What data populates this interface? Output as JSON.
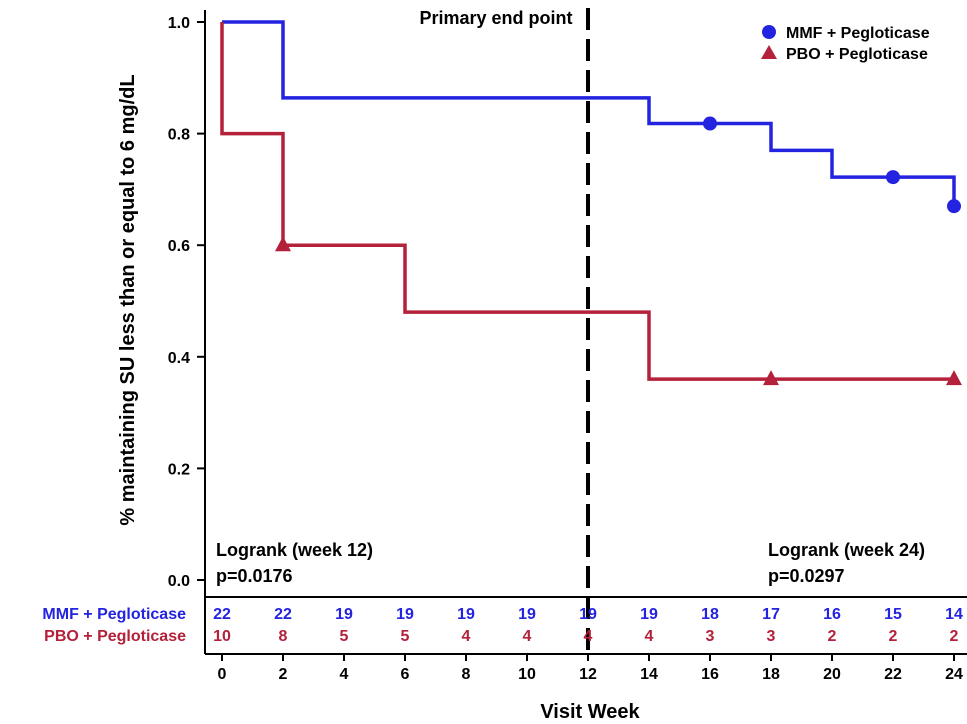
{
  "chart_data": {
    "type": "line",
    "subtype": "kaplan-meier-step",
    "xlabel": "Visit Week",
    "ylabel": "% maintaining SU less than or equal to 6 mg/dL",
    "xlim": [
      0,
      24
    ],
    "ylim": [
      0,
      1
    ],
    "x_ticks": [
      "0",
      "2",
      "4",
      "6",
      "8",
      "10",
      "12",
      "14",
      "16",
      "18",
      "20",
      "22",
      "24"
    ],
    "y_ticks": [
      "0.0",
      "0.2",
      "0.4",
      "0.6",
      "0.8",
      "1.0"
    ],
    "grid": false,
    "legend_position": "top-right",
    "reference_line": {
      "x": 12,
      "label": "Primary end point",
      "style": "dashed"
    },
    "series": [
      {
        "name": "MMF + Pegloticase",
        "color": "#2323e0",
        "marker": "circle",
        "steps": [
          {
            "x": 0,
            "y": 1.0
          },
          {
            "x": 2,
            "y": 0.864
          },
          {
            "x": 14,
            "y": 0.818
          },
          {
            "x": 18,
            "y": 0.77
          },
          {
            "x": 20,
            "y": 0.722
          },
          {
            "x": 24,
            "y": 0.67
          }
        ],
        "end_x": 24,
        "markers": [
          {
            "x": 16,
            "y": 0.818
          },
          {
            "x": 22,
            "y": 0.722
          },
          {
            "x": 24,
            "y": 0.67
          }
        ],
        "at_risk": [
          "22",
          "22",
          "19",
          "19",
          "19",
          "19",
          "19",
          "19",
          "18",
          "17",
          "16",
          "15",
          "14"
        ]
      },
      {
        "name": "PBO + Pegloticase",
        "color": "#b3213a",
        "marker": "triangle",
        "steps": [
          {
            "x": 0,
            "y": 1.0
          },
          {
            "x": 0,
            "y": 0.8
          },
          {
            "x": 2,
            "y": 0.6
          },
          {
            "x": 6,
            "y": 0.48
          },
          {
            "x": 14,
            "y": 0.36
          }
        ],
        "end_x": 24,
        "markers": [
          {
            "x": 2,
            "y": 0.6
          },
          {
            "x": 18,
            "y": 0.36
          },
          {
            "x": 24,
            "y": 0.36
          }
        ],
        "at_risk": [
          "10",
          "8",
          "5",
          "5",
          "4",
          "4",
          "4",
          "4",
          "3",
          "3",
          "2",
          "2",
          "2"
        ]
      }
    ],
    "annotations": {
      "logrank_week12_title": "Logrank (week 12)",
      "logrank_week12_p": "p=0.0176",
      "logrank_week24_title": "Logrank (week 24)",
      "logrank_week24_p": "p=0.0297"
    }
  }
}
